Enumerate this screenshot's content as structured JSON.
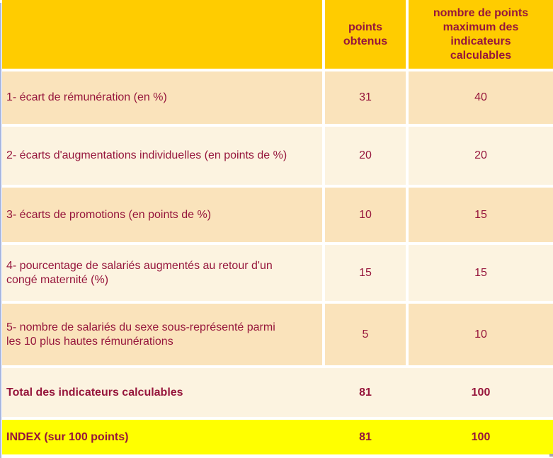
{
  "table": {
    "title_semantic": "index-egalite-professionnelle",
    "header": {
      "col1": "",
      "col2": "points\nobtenus",
      "col3": "nombre de points\nmaximum des\nindicateurs\ncalculables"
    },
    "rows": [
      {
        "label": "1- écart de rémunération (en %)",
        "points": "31",
        "max": "40"
      },
      {
        "label": "2- écarts d'augmentations individuelles (en points de %)",
        "points": "20",
        "max": "20"
      },
      {
        "label": "3- écarts de promotions (en points de %)",
        "points": "10",
        "max": "15"
      },
      {
        "label": "4- pourcentage de salariés augmentés au retour d'un\ncongé maternité (%)",
        "points": "15",
        "max": "15"
      },
      {
        "label": "5- nombre de salariés du sexe sous-représenté parmi\nles 10 plus hautes rémunérations",
        "points": "5",
        "max": "10"
      }
    ],
    "total": {
      "label": "Total des indicateurs calculables",
      "points": "81",
      "max": "100"
    },
    "index": {
      "label": "INDEX (sur 100 points)",
      "points": "81",
      "max": "100"
    }
  },
  "colors": {
    "header_bg": "#FFCC00",
    "row_odd_bg": "#FAE3BB",
    "row_even_bg": "#FCF3E0",
    "index_row_bg": "#FFFF00",
    "text": "#96163C",
    "gutter": "#FFFFFF",
    "left_edge_line": "#A7B6E0"
  }
}
